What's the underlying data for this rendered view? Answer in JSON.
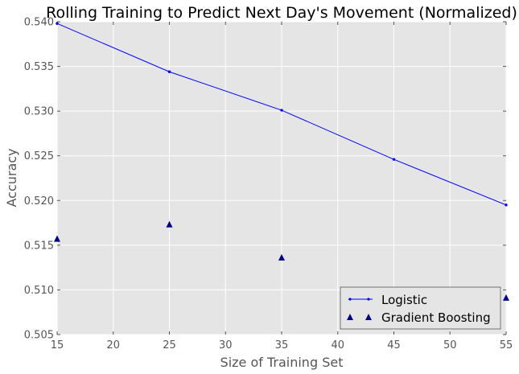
{
  "chart_data": {
    "type": "line",
    "title": "Rolling Training to Predict Next Day's Movement (Normalized)",
    "xlabel": "Size of Training Set",
    "ylabel": "Accuracy",
    "xlim": [
      15,
      55
    ],
    "ylim": [
      0.505,
      0.54
    ],
    "xticks": [
      15,
      20,
      25,
      30,
      35,
      40,
      45,
      50,
      55
    ],
    "yticks": [
      0.505,
      0.51,
      0.515,
      0.52,
      0.525,
      0.53,
      0.535,
      0.54
    ],
    "ytick_labels": [
      "0.505",
      "0.510",
      "0.515",
      "0.520",
      "0.525",
      "0.530",
      "0.535",
      "0.540"
    ],
    "grid": true,
    "legend_position": "lower-right",
    "series": [
      {
        "name": "Logistic",
        "style": "line-with-point-markers",
        "color": "#0000ff",
        "x": [
          15,
          25,
          35,
          45,
          55
        ],
        "y": [
          0.5398,
          0.5344,
          0.5301,
          0.5246,
          0.5195
        ]
      },
      {
        "name": "Gradient Boosting",
        "style": "triangle-markers",
        "color": "#00008b",
        "x": [
          15,
          25,
          35,
          55
        ],
        "y": [
          0.5157,
          0.5173,
          0.5136,
          0.5091
        ]
      }
    ]
  },
  "colors": {
    "plot_background": "#e5e5e5",
    "grid": "#ffffff",
    "logistic": "#0000ff",
    "gradient_boosting": "#00008b"
  }
}
